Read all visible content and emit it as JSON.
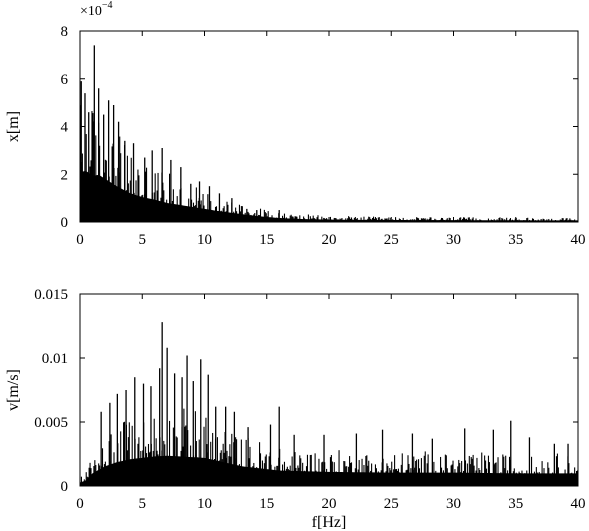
{
  "chart_data": [
    {
      "type": "bar",
      "ylabel": "x[m]",
      "xlabel": "",
      "y_multiplier_base": "×10",
      "y_multiplier_exp": "−4",
      "xlim": [
        0,
        40
      ],
      "ylim": [
        0,
        8
      ],
      "xticks": [
        0,
        5,
        10,
        15,
        20,
        25,
        30,
        35,
        40
      ],
      "xtick_labels": [
        "0",
        "5",
        "10",
        "15",
        "20",
        "25",
        "30",
        "35",
        "40"
      ],
      "yticks": [
        0,
        2,
        4,
        6,
        8
      ],
      "ytick_labels": [
        "0",
        "2",
        "4",
        "6",
        "8"
      ],
      "bar_color": "#000000",
      "envelope": {
        "f": [
          0,
          0.5,
          1.0,
          1.5,
          2,
          3,
          4,
          5,
          6,
          7,
          8,
          9,
          10,
          11,
          12,
          13,
          14,
          15,
          16,
          18,
          20,
          25,
          30,
          35,
          40
        ],
        "value": [
          3.8,
          3.9,
          3.5,
          3.6,
          3.3,
          2.7,
          2.2,
          1.9,
          1.7,
          1.45,
          1.3,
          1.15,
          1.0,
          0.85,
          0.72,
          0.6,
          0.48,
          0.38,
          0.3,
          0.22,
          0.18,
          0.15,
          0.14,
          0.13,
          0.12
        ]
      },
      "peaks": [
        {
          "f": 0.1,
          "value": 5.9
        },
        {
          "f": 0.4,
          "value": 5.4
        },
        {
          "f": 0.7,
          "value": 4.6
        },
        {
          "f": 1.15,
          "value": 7.4
        },
        {
          "f": 1.5,
          "value": 5.6
        },
        {
          "f": 1.9,
          "value": 4.5
        },
        {
          "f": 2.3,
          "value": 5.1
        },
        {
          "f": 2.7,
          "value": 4.9
        },
        {
          "f": 3.1,
          "value": 4.2
        },
        {
          "f": 3.6,
          "value": 3.4
        },
        {
          "f": 4.3,
          "value": 3.3
        },
        {
          "f": 5.2,
          "value": 2.7
        },
        {
          "f": 5.8,
          "value": 3.0
        },
        {
          "f": 6.6,
          "value": 3.1
        },
        {
          "f": 7.3,
          "value": 2.6
        },
        {
          "f": 8.1,
          "value": 2.3
        },
        {
          "f": 8.9,
          "value": 1.6
        },
        {
          "f": 9.6,
          "value": 1.7
        },
        {
          "f": 10.4,
          "value": 1.5
        },
        {
          "f": 11.2,
          "value": 1.2
        },
        {
          "f": 12.2,
          "value": 1.0
        },
        {
          "f": 13.4,
          "value": 0.55
        },
        {
          "f": 14.2,
          "value": 0.5
        },
        {
          "f": 16.0,
          "value": 0.5
        }
      ]
    },
    {
      "type": "bar",
      "ylabel": "v[m/s]",
      "xlabel": "f[Hz]",
      "xlim": [
        0,
        40
      ],
      "ylim": [
        0,
        0.015
      ],
      "xticks": [
        0,
        5,
        10,
        15,
        20,
        25,
        30,
        35,
        40
      ],
      "xtick_labels": [
        "0",
        "5",
        "10",
        "15",
        "20",
        "25",
        "30",
        "35",
        "40"
      ],
      "yticks": [
        0,
        0.005,
        0.01,
        0.015
      ],
      "ytick_labels": [
        "0",
        "0.005",
        "0.01",
        "0.015"
      ],
      "bar_color": "#000000",
      "envelope": {
        "f": [
          0,
          0.5,
          1,
          2,
          3,
          4,
          5,
          6,
          7,
          8,
          9,
          10,
          11,
          12,
          13,
          14,
          15,
          16,
          18,
          20,
          25,
          30,
          35,
          40
        ],
        "value": [
          0.0005,
          0.0008,
          0.0018,
          0.0028,
          0.0034,
          0.0038,
          0.004,
          0.0042,
          0.0043,
          0.0042,
          0.0041,
          0.004,
          0.0036,
          0.0032,
          0.0028,
          0.0026,
          0.0024,
          0.0022,
          0.0021,
          0.002,
          0.0019,
          0.0019,
          0.0018,
          0.0018
        ]
      },
      "peaks": [
        {
          "f": 1.7,
          "value": 0.0058
        },
        {
          "f": 2.4,
          "value": 0.0065
        },
        {
          "f": 3.0,
          "value": 0.0072
        },
        {
          "f": 3.7,
          "value": 0.0075
        },
        {
          "f": 4.4,
          "value": 0.0085
        },
        {
          "f": 5.1,
          "value": 0.008
        },
        {
          "f": 5.7,
          "value": 0.0078
        },
        {
          "f": 6.4,
          "value": 0.0092
        },
        {
          "f": 6.6,
          "value": 0.0128
        },
        {
          "f": 7.0,
          "value": 0.0108
        },
        {
          "f": 7.6,
          "value": 0.0088
        },
        {
          "f": 8.2,
          "value": 0.0085
        },
        {
          "f": 8.6,
          "value": 0.0102
        },
        {
          "f": 9.1,
          "value": 0.0082
        },
        {
          "f": 9.7,
          "value": 0.0099
        },
        {
          "f": 10.3,
          "value": 0.0087
        },
        {
          "f": 10.9,
          "value": 0.0062
        },
        {
          "f": 11.7,
          "value": 0.0062
        },
        {
          "f": 12.4,
          "value": 0.0058
        },
        {
          "f": 13.5,
          "value": 0.0046
        },
        {
          "f": 15.3,
          "value": 0.0048
        },
        {
          "f": 16.0,
          "value": 0.0062
        },
        {
          "f": 17.2,
          "value": 0.004
        },
        {
          "f": 19.6,
          "value": 0.004
        },
        {
          "f": 22.2,
          "value": 0.0041
        },
        {
          "f": 24.3,
          "value": 0.0044
        },
        {
          "f": 26.7,
          "value": 0.0041
        },
        {
          "f": 28.3,
          "value": 0.0037
        },
        {
          "f": 30.9,
          "value": 0.0045
        },
        {
          "f": 33.2,
          "value": 0.0044
        },
        {
          "f": 34.6,
          "value": 0.0051
        },
        {
          "f": 36.1,
          "value": 0.0038
        },
        {
          "f": 38.1,
          "value": 0.0033
        },
        {
          "f": 39.2,
          "value": 0.0033
        }
      ]
    }
  ]
}
